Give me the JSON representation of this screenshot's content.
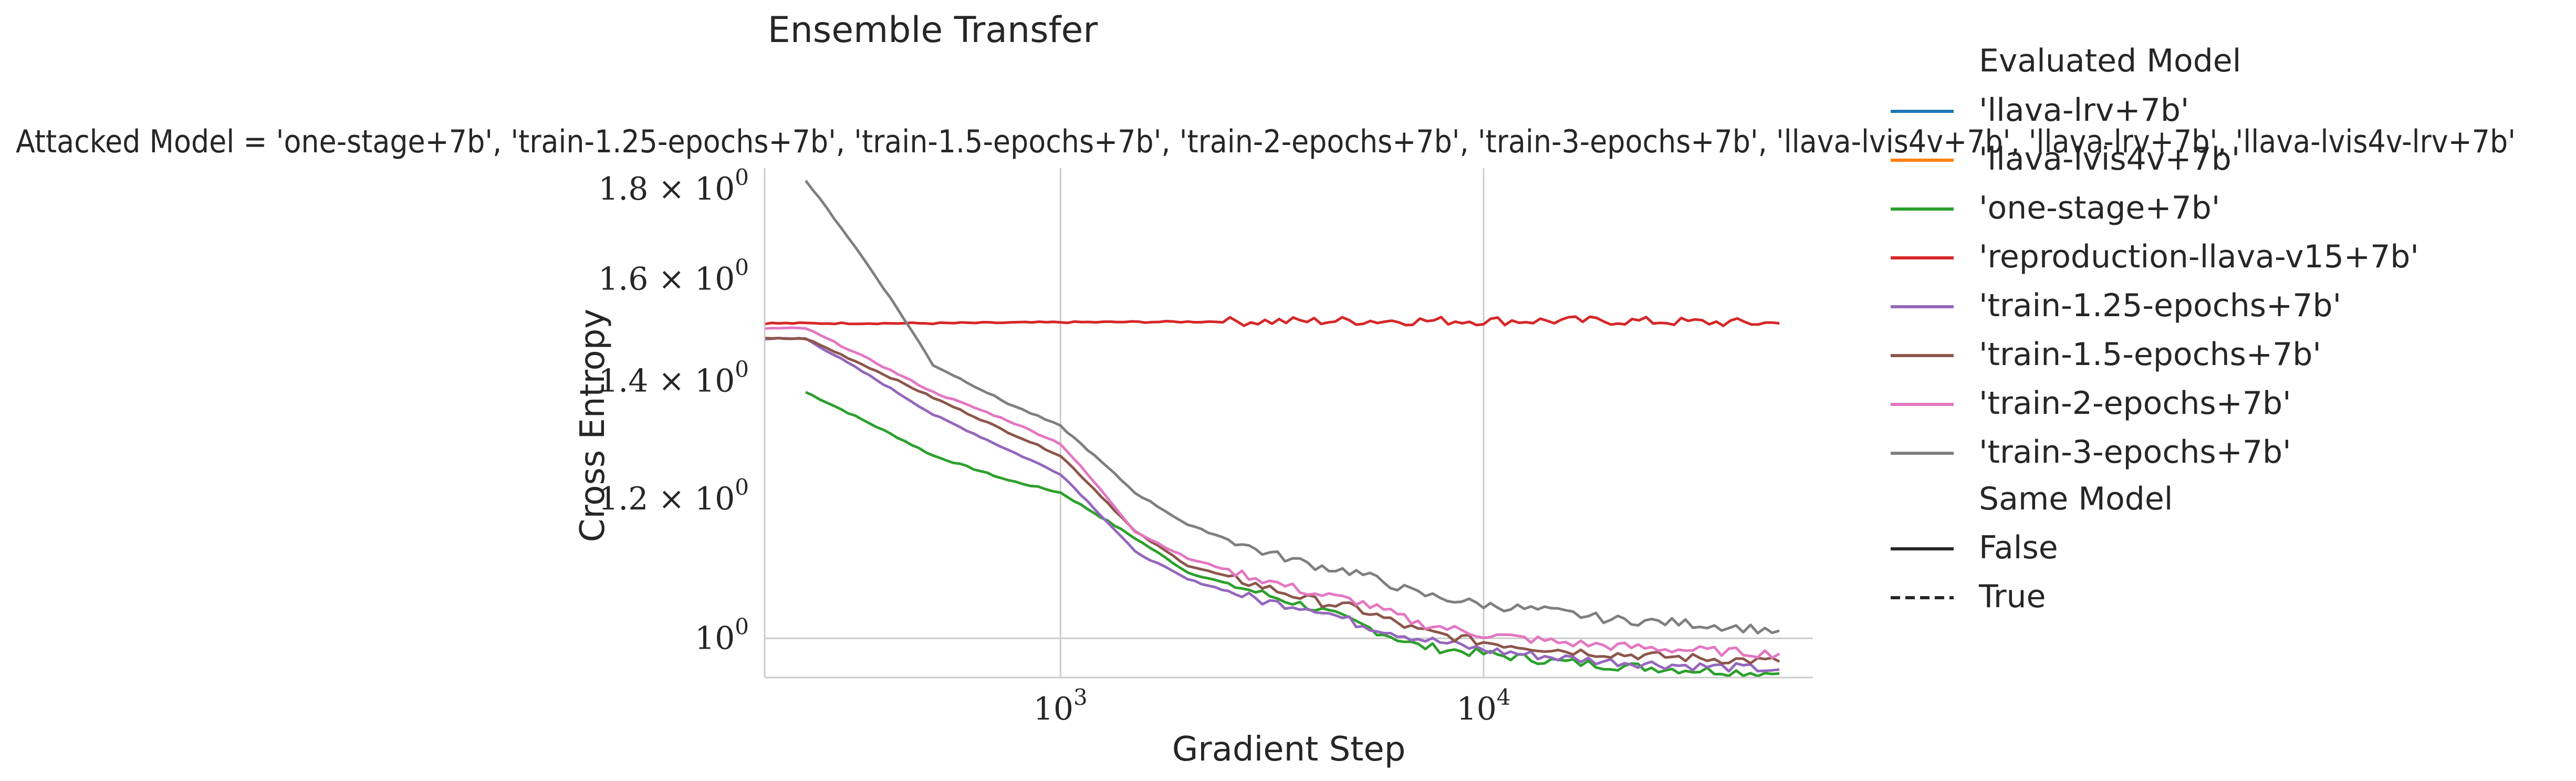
{
  "chart_data": {
    "type": "line",
    "title": "Ensemble Transfer",
    "subtitle": "Attacked Model = 'one-stage+7b', 'train-1.25-epochs+7b', 'train-1.5-epochs+7b', 'train-2-epochs+7b', 'train-3-epochs+7b', 'llava-lvis4v+7b', 'llava-lrv+7b', 'llava-lvis4v-lrv+7b'",
    "xlabel": "Gradient Step",
    "ylabel": "Cross Entropy",
    "xscale": "log",
    "yscale": "log",
    "xlim": [
      200,
      60000
    ],
    "ylim": [
      0.95,
      1.85
    ],
    "grid": "x-only",
    "xticks": [
      {
        "value": 1000,
        "base": "10",
        "exp": "3"
      },
      {
        "value": 10000,
        "base": "10",
        "exp": "4"
      }
    ],
    "yticks": [
      {
        "value": 1.0,
        "mant": "",
        "base": "10",
        "exp": "0"
      },
      {
        "value": 1.2,
        "mant": "1.2 × ",
        "base": "10",
        "exp": "0"
      },
      {
        "value": 1.4,
        "mant": "1.4 × ",
        "base": "10",
        "exp": "0"
      },
      {
        "value": 1.6,
        "mant": "1.6 × ",
        "base": "10",
        "exp": "0"
      },
      {
        "value": 1.8,
        "mant": "1.8 × ",
        "base": "10",
        "exp": "0"
      }
    ],
    "legend": {
      "placement": "right-outside",
      "hue_title": "Evaluated Model",
      "style_title": "Same Model",
      "style_entries": [
        {
          "label": "False",
          "dash": "solid"
        },
        {
          "label": "True",
          "dash": "dashed"
        }
      ]
    },
    "series": [
      {
        "name": "'llava-lrv+7b'",
        "color": "#1f77b4",
        "dash": "solid",
        "x": [],
        "y": []
      },
      {
        "name": "'llava-lvis4v+7b'",
        "color": "#ff7f0e",
        "dash": "solid",
        "x": [],
        "y": []
      },
      {
        "name": "'one-stage+7b'",
        "color": "#2ca02c",
        "dash": "solid",
        "x": [
          250,
          500,
          750,
          1000,
          1500,
          2000,
          3000,
          4000,
          5000,
          7000,
          10000,
          15000,
          20000,
          30000,
          50000
        ],
        "y": [
          1.38,
          1.27,
          1.23,
          1.21,
          1.14,
          1.09,
          1.06,
          1.04,
          1.02,
          0.99,
          0.98,
          0.97,
          0.965,
          0.96,
          0.955
        ]
      },
      {
        "name": "'reproduction-llava-v15+7b'",
        "color": "#d62728",
        "dash": "solid",
        "x": [
          200,
          500,
          1000,
          2000,
          5000,
          10000,
          20000,
          50000
        ],
        "y": [
          1.51,
          1.51,
          1.512,
          1.513,
          1.515,
          1.515,
          1.515,
          1.51
        ]
      },
      {
        "name": "'train-1.25-epochs+7b'",
        "color": "#9467bd",
        "dash": "solid",
        "x": [
          200,
          250,
          500,
          750,
          1000,
          1500,
          2000,
          3000,
          4000,
          5000,
          7000,
          10000,
          15000,
          20000,
          30000,
          50000
        ],
        "y": [
          1.48,
          1.48,
          1.34,
          1.28,
          1.24,
          1.12,
          1.08,
          1.05,
          1.04,
          1.02,
          1.0,
          0.985,
          0.975,
          0.97,
          0.965,
          0.96
        ]
      },
      {
        "name": "'train-1.5-epochs+7b'",
        "color": "#8c564b",
        "dash": "solid",
        "x": [
          200,
          250,
          500,
          750,
          1000,
          1500,
          2000,
          3000,
          4000,
          5000,
          7000,
          10000,
          15000,
          20000,
          30000,
          50000
        ],
        "y": [
          1.48,
          1.48,
          1.37,
          1.31,
          1.27,
          1.15,
          1.1,
          1.07,
          1.05,
          1.04,
          1.01,
          0.995,
          0.985,
          0.98,
          0.975,
          0.97
        ]
      },
      {
        "name": "'train-2-epochs+7b'",
        "color": "#e377c2",
        "dash": "solid",
        "x": [
          200,
          250,
          500,
          750,
          1000,
          1500,
          2000,
          3000,
          4000,
          5000,
          7000,
          10000,
          15000,
          20000,
          30000,
          50000
        ],
        "y": [
          1.5,
          1.5,
          1.38,
          1.33,
          1.29,
          1.15,
          1.11,
          1.08,
          1.06,
          1.05,
          1.02,
          1.005,
          0.995,
          0.99,
          0.985,
          0.98
        ]
      },
      {
        "name": "'train-3-epochs+7b'",
        "color": "#7f7f7f",
        "dash": "solid",
        "x": [
          250,
          500,
          750,
          1000,
          1500,
          2000,
          3000,
          4000,
          5000,
          7000,
          10000,
          15000,
          20000,
          30000,
          50000
        ],
        "y": [
          1.82,
          1.43,
          1.36,
          1.32,
          1.21,
          1.16,
          1.12,
          1.1,
          1.09,
          1.06,
          1.045,
          1.035,
          1.025,
          1.02,
          1.01
        ]
      }
    ]
  }
}
